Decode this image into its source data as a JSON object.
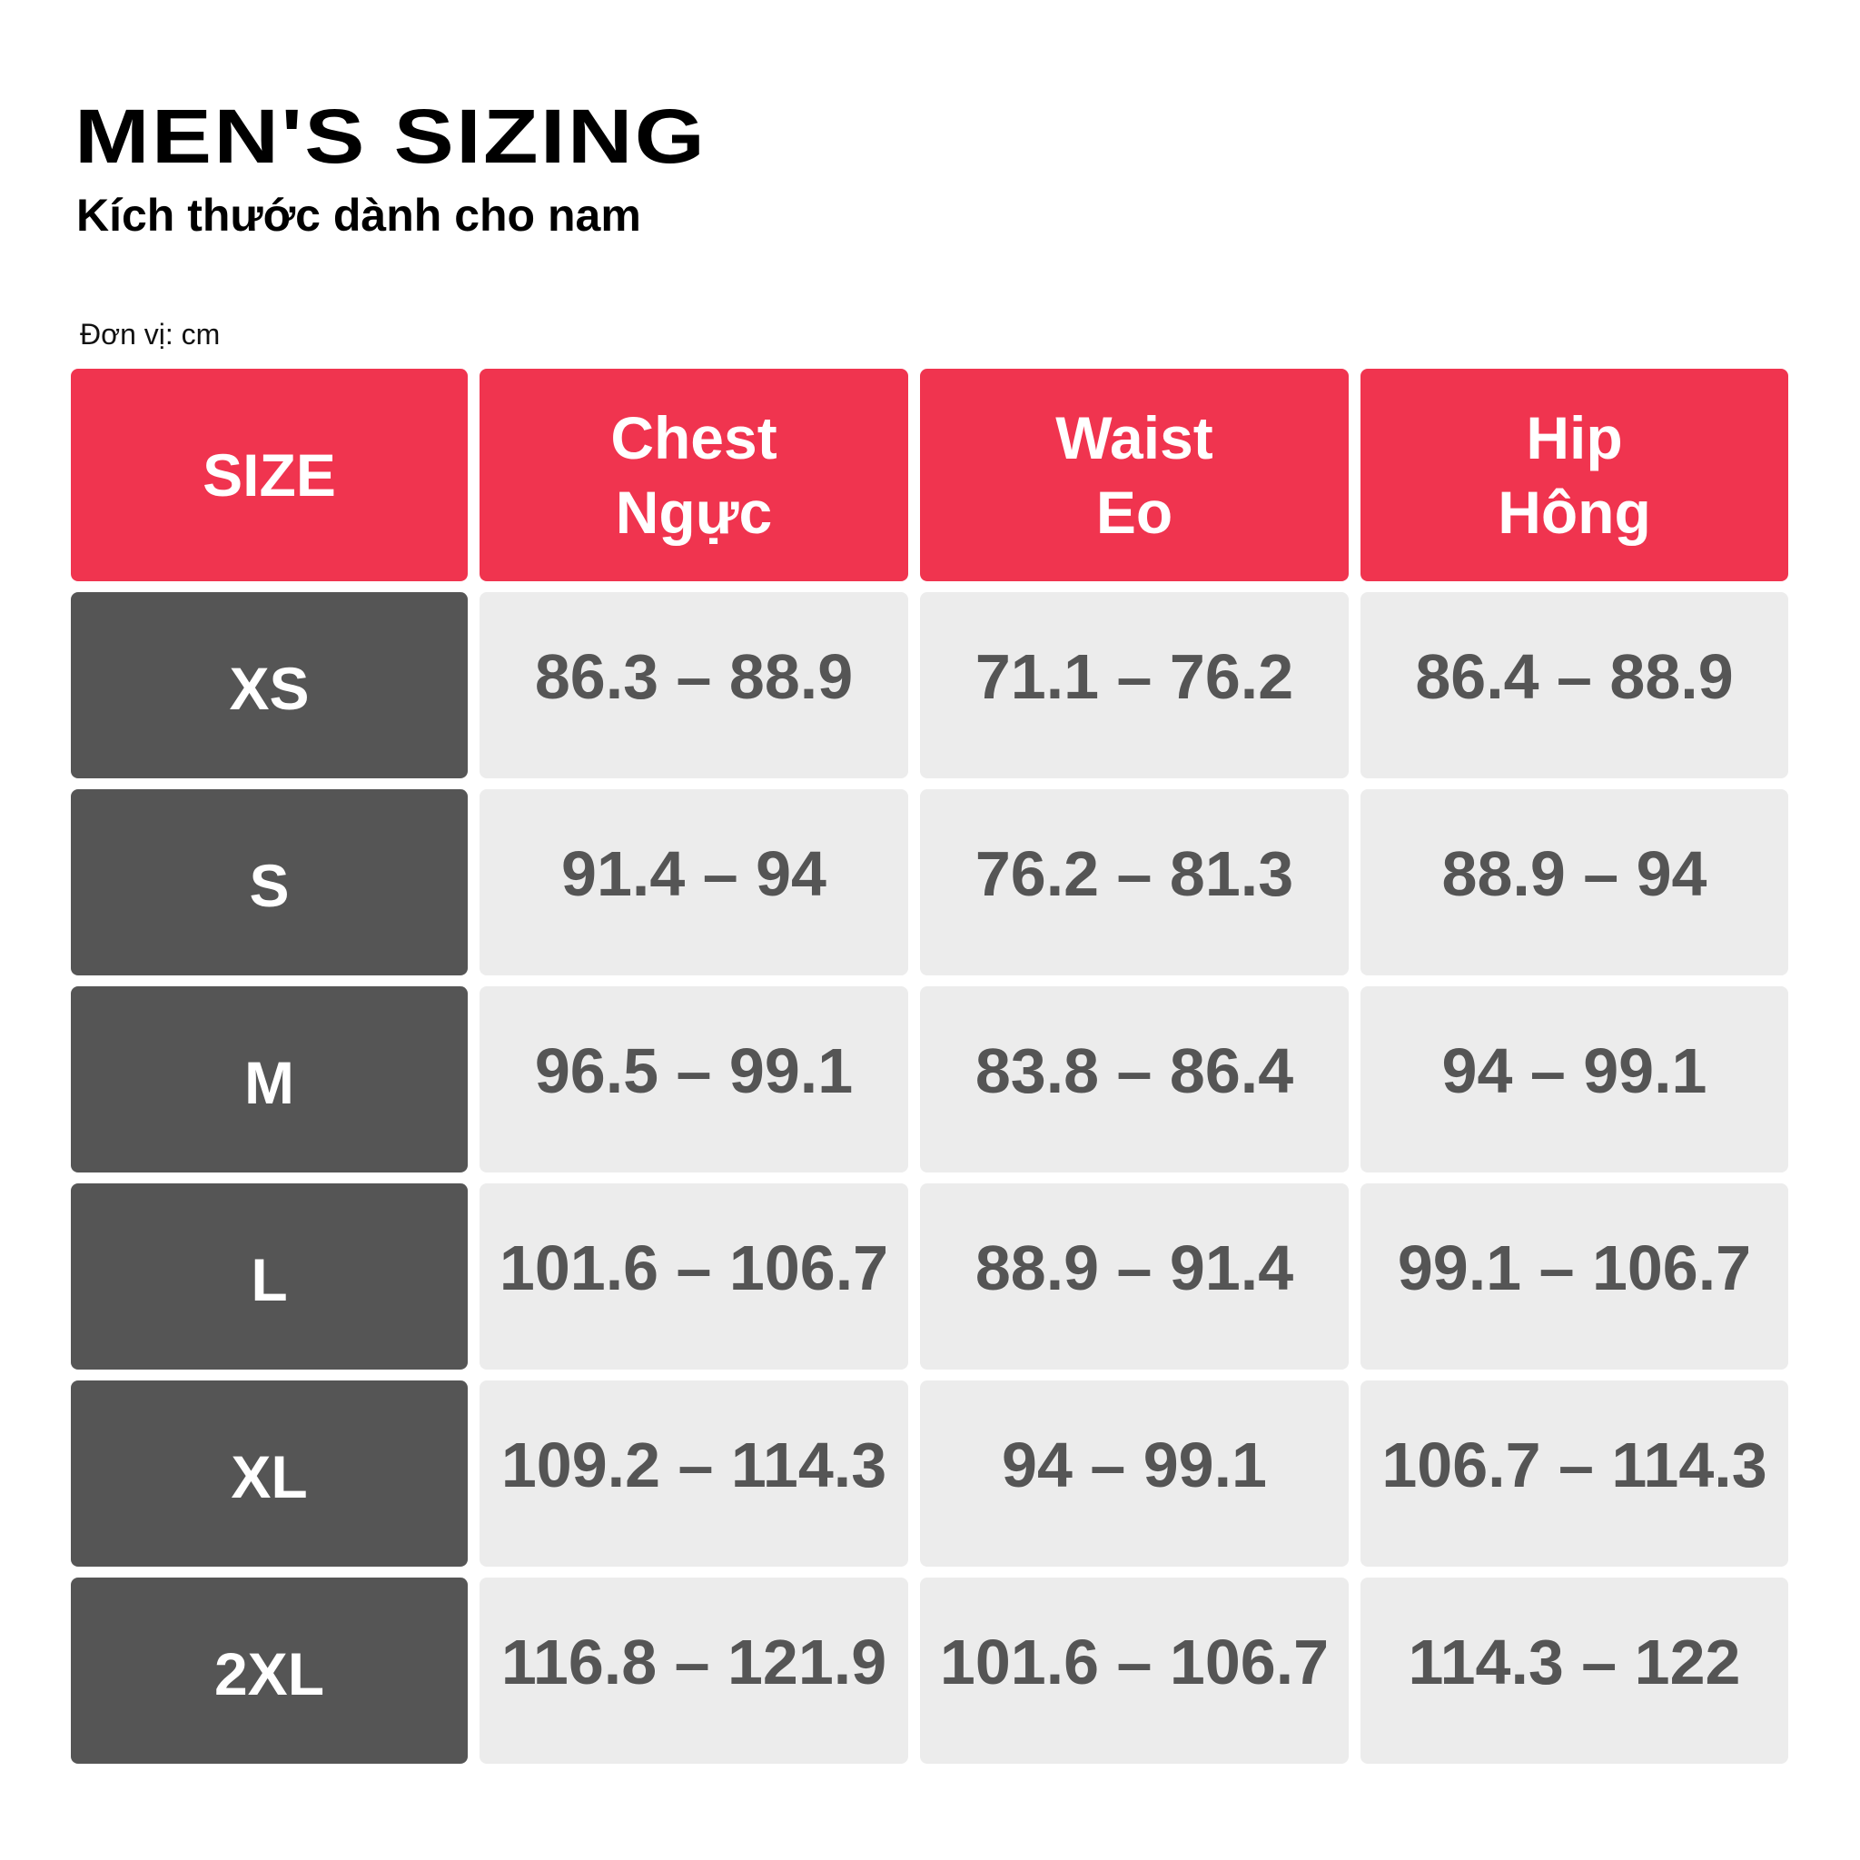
{
  "title": "MEN'S SIZING",
  "subtitle": "Kích thước dành cho nam",
  "unit_label": "Đơn vị: cm",
  "colors": {
    "header": "#F0344F",
    "size_cell": "#555555",
    "value_cell": "#ECECEC",
    "value_text": "#555555"
  },
  "table": {
    "headers": [
      {
        "en": "SIZE",
        "vi": ""
      },
      {
        "en": "Chest",
        "vi": "Ngực"
      },
      {
        "en": "Waist",
        "vi": "Eo"
      },
      {
        "en": "Hip",
        "vi": "Hông"
      }
    ],
    "rows": [
      {
        "size": "XS",
        "chest": "86.3 – 88.9",
        "waist": "71.1 – 76.2",
        "hip": "86.4 – 88.9"
      },
      {
        "size": "S",
        "chest": "91.4 – 94",
        "waist": "76.2 – 81.3",
        "hip": "88.9 – 94"
      },
      {
        "size": "M",
        "chest": "96.5 – 99.1",
        "waist": "83.8 – 86.4",
        "hip": "94 – 99.1"
      },
      {
        "size": "L",
        "chest": "101.6 – 106.7",
        "waist": "88.9 – 91.4",
        "hip": "99.1 – 106.7"
      },
      {
        "size": "XL",
        "chest": "109.2 – 114.3",
        "waist": "94 – 99.1",
        "hip": "106.7 – 114.3"
      },
      {
        "size": "2XL",
        "chest": "116.8 – 121.9",
        "waist": "101.6 – 106.7",
        "hip": "114.3 – 122"
      }
    ]
  }
}
